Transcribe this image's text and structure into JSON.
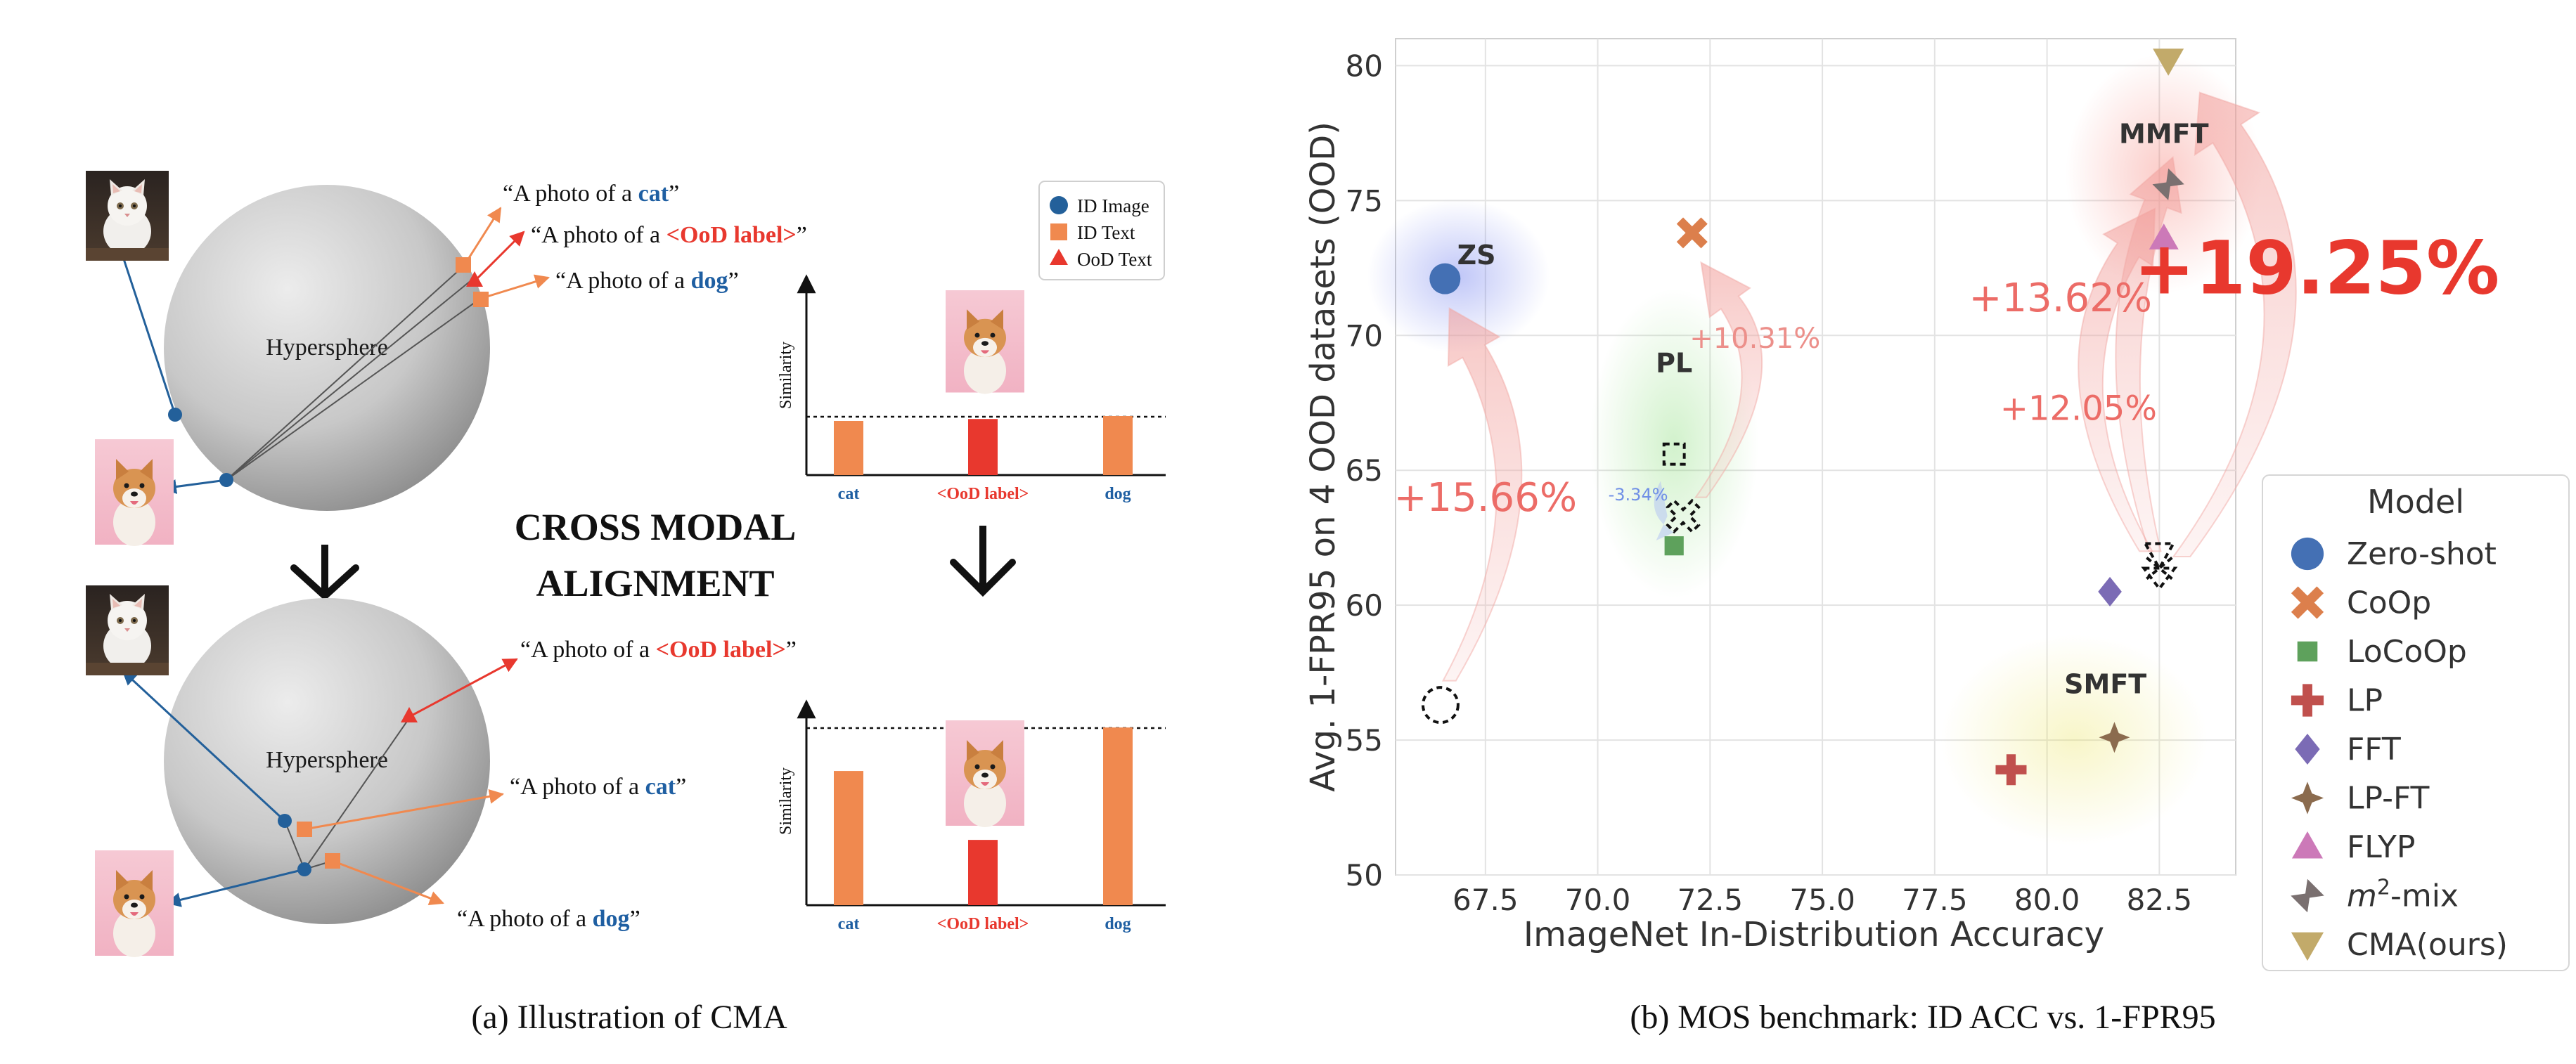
{
  "captions": {
    "a": "(a) Illustration of CMA",
    "b": "(b) MOS benchmark: ID ACC vs. 1-FPR95"
  },
  "panel_a": {
    "sphere_label": "Hypersphere",
    "center_title": [
      "CROSS MODAL",
      "ALIGNMENT"
    ],
    "legend": {
      "id_image": "ID Image",
      "id_text": "ID Text",
      "ood_text": "OoD Text"
    },
    "prompt_prefix": "“A photo of a ",
    "prompt_suffix": "”",
    "labels": {
      "cat": "cat",
      "dog": "dog",
      "ood": "<OoD label>"
    },
    "similarity_axis": "Similarity",
    "bar_categories": [
      "cat",
      "<OoD label>",
      "dog"
    ],
    "bars_before": [
      0.55,
      0.57,
      0.6
    ],
    "bars_after": [
      0.74,
      0.36,
      0.98
    ],
    "colors": {
      "id_image": "#23609a",
      "id_text": "#f0894f",
      "ood_text": "#e8382e",
      "label_blue": "#1f5fa2",
      "label_red": "#e8382e"
    }
  },
  "chart_data": {
    "type": "scatter",
    "xlabel": "ImageNet In-Distribution Accuracy",
    "ylabel": "Avg. 1-FPR95 on 4 OOD datasets (OOD)",
    "xlim": [
      65.5,
      84.2
    ],
    "ylim": [
      50,
      81
    ],
    "xticks": [
      67.5,
      70.0,
      72.5,
      75.0,
      77.5,
      80.0,
      82.5
    ],
    "yticks": [
      50,
      55,
      60,
      65,
      70,
      75,
      80
    ],
    "grid": true,
    "legend_title": "Model",
    "legend_position": "lower-right",
    "series": [
      {
        "name": "Zero-shot",
        "marker": "circle",
        "color": "#4470b4",
        "x": 66.6,
        "y": 72.1
      },
      {
        "name": "CoOp",
        "marker": "x",
        "color": "#dc7f4c",
        "x": 72.1,
        "y": 73.8
      },
      {
        "name": "LoCoOp",
        "marker": "square",
        "color": "#5ea15c",
        "x": 71.7,
        "y": 62.2
      },
      {
        "name": "LP",
        "marker": "plus",
        "color": "#c0504d",
        "x": 79.2,
        "y": 53.9
      },
      {
        "name": "FFT",
        "marker": "diamond",
        "color": "#7b6bb5",
        "x": 81.4,
        "y": 60.5
      },
      {
        "name": "LP-FT",
        "marker": "star4",
        "color": "#8b6b4e",
        "x": 81.5,
        "y": 55.1
      },
      {
        "name": "FLYP",
        "marker": "triangle-up",
        "color": "#cc79b8",
        "x": 82.6,
        "y": 73.6
      },
      {
        "name": "m2-mix",
        "marker": "hourglass",
        "color": "#7a7070",
        "x": 82.7,
        "y": 75.6
      },
      {
        "name": "CMA(ours)",
        "marker": "triangle-down",
        "color": "#c2aa6a",
        "x": 82.7,
        "y": 80.2
      }
    ],
    "ghost_markers": [
      {
        "marker": "circle",
        "x": 66.5,
        "y": 56.3
      },
      {
        "marker": "square",
        "x": 71.7,
        "y": 65.6
      },
      {
        "marker": "x",
        "x": 71.9,
        "y": 63.3
      },
      {
        "marker": "cluster",
        "x": 82.5,
        "y": 61.5
      }
    ],
    "groups": [
      {
        "label": "ZS",
        "x": 67.3,
        "y": 73.0,
        "glow": "#3b4fe8"
      },
      {
        "label": "PL",
        "x": 71.7,
        "y": 69.0,
        "glow": "#5fd04a"
      },
      {
        "label": "MMFT",
        "x": 82.6,
        "y": 77.5,
        "glow": "#f2564a"
      },
      {
        "label": "SMFT",
        "x": 81.3,
        "y": 57.1,
        "glow": "#e8e04a"
      }
    ],
    "annotations": [
      {
        "text": "+15.66%",
        "x": 67.5,
        "y": 64.0
      },
      {
        "text": "+10.31%",
        "x": 73.5,
        "y": 69.9
      },
      {
        "text": "-3.34%",
        "x": 70.9,
        "y": 64.1
      },
      {
        "text": "+13.62%",
        "x": 80.3,
        "y": 71.4
      },
      {
        "text": "+12.05%",
        "x": 80.7,
        "y": 67.3
      },
      {
        "text": "+19.25%",
        "x": 86.0,
        "y": 72.5
      }
    ]
  }
}
